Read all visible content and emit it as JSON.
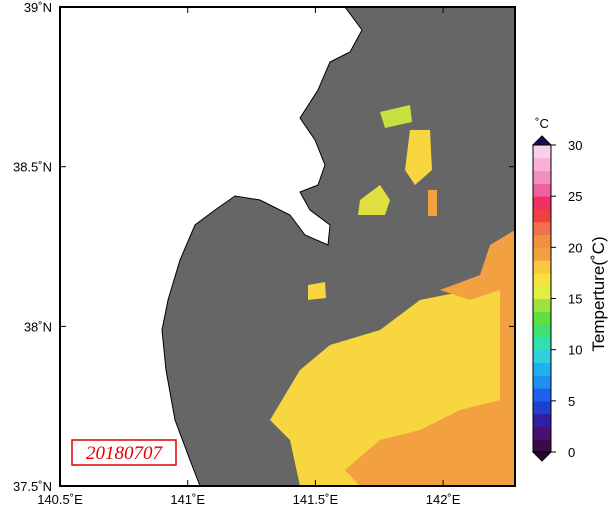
{
  "map": {
    "lon_labels": [
      "140.5˚E",
      "141˚E",
      "141.5˚E",
      "142˚E"
    ],
    "lat_labels": [
      "39˚N",
      "38.5˚N",
      "38˚N",
      "37.5˚N"
    ],
    "date": "20180707",
    "colorbar": {
      "unit": "˚C",
      "title": "Temperture(˚C)",
      "labels": [
        "0",
        "5",
        "10",
        "15",
        "20",
        "25",
        "30"
      ]
    }
  }
}
